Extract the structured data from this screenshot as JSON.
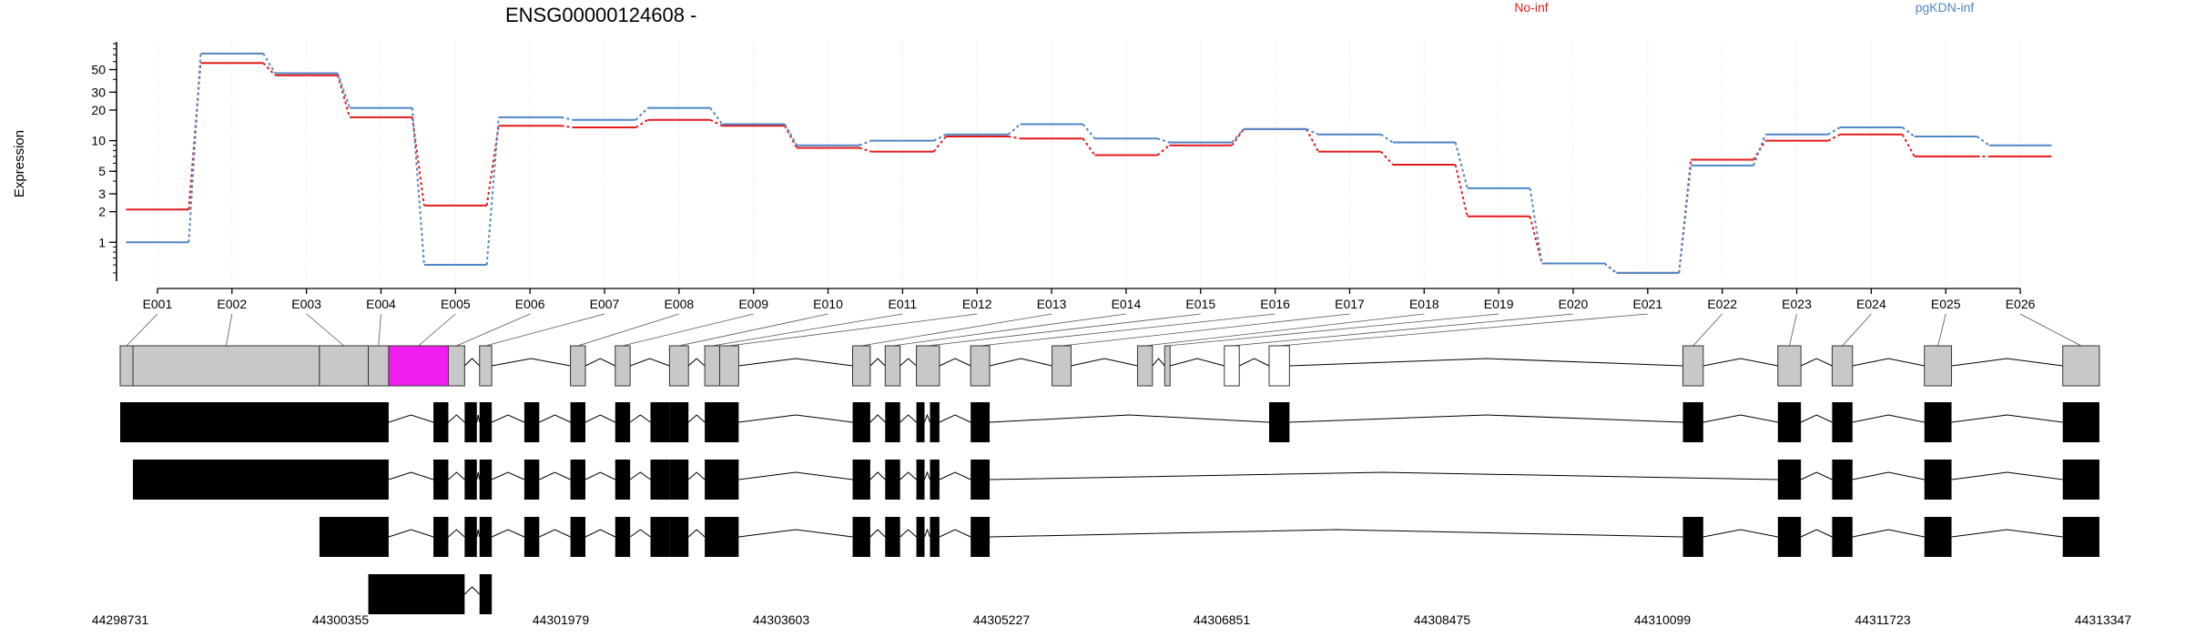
{
  "chart_data": {
    "type": "line",
    "title": "ENSG00000124608 -",
    "ylabel": "Expression",
    "y_scale": "log",
    "yticks": [
      1,
      2,
      3,
      5,
      10,
      20,
      30,
      50
    ],
    "ylim": [
      0.45,
      90
    ],
    "grid": "vertical dotted lines at each exon",
    "legend_placement": "top",
    "categories": [
      "E001",
      "E002",
      "E003",
      "E004",
      "E005",
      "E006",
      "E007",
      "E008",
      "E009",
      "E010",
      "E011",
      "E012",
      "E013",
      "E014",
      "E015",
      "E016",
      "E017",
      "E018",
      "E019",
      "E020",
      "E021",
      "E022",
      "E023",
      "E024",
      "E025",
      "E026"
    ],
    "series": [
      {
        "name": "No-inf",
        "color": "#e31a1c",
        "values": [
          2.1,
          58,
          44,
          17,
          2.3,
          14,
          13.5,
          16,
          14,
          8.5,
          7.8,
          11,
          10.5,
          7.2,
          9,
          13,
          7.8,
          5.8,
          1.8,
          0.62,
          0.5,
          6.5,
          10,
          11.5,
          7,
          7
        ]
      },
      {
        "name": "pgKDN-inf",
        "color": "#4f86c6",
        "values": [
          1.0,
          72,
          46,
          21,
          0.6,
          17,
          16,
          21,
          14.5,
          9,
          10,
          11.5,
          14.5,
          10.5,
          9.6,
          13,
          11.5,
          9.6,
          3.4,
          0.62,
          0.5,
          5.7,
          11.5,
          13.5,
          11,
          9
        ]
      }
    ],
    "gene_model": {
      "coordinate_ticks": [
        "44298731",
        "44300355",
        "44301979",
        "44303603",
        "44305227",
        "44306851",
        "44308475",
        "44310099",
        "44311723",
        "44313347"
      ],
      "coordinate_range": [
        44298731,
        44313347
      ],
      "highlighted_exon": "E005",
      "highlight_color": "#f01ff0",
      "exon_fill": "#c8c8c8",
      "transcript_fill": "#000000",
      "exons": [
        {
          "id": "E001",
          "start": 44298731,
          "end": 44298825,
          "fill": "gray"
        },
        {
          "id": "E002",
          "start": 44298825,
          "end": 44300200,
          "fill": "gray"
        },
        {
          "id": "E003",
          "start": 44300200,
          "end": 44300560,
          "fill": "gray"
        },
        {
          "id": "E004",
          "start": 44300560,
          "end": 44300710,
          "fill": "gray"
        },
        {
          "id": "E005",
          "start": 44300710,
          "end": 44301150,
          "fill": "magenta"
        },
        {
          "id": "E006",
          "start": 44301150,
          "end": 44301270,
          "fill": "gray"
        },
        {
          "id": "E007",
          "start": 44301380,
          "end": 44301470,
          "fill": "gray"
        },
        {
          "id": "E008",
          "start": 44302050,
          "end": 44302160,
          "fill": "gray"
        },
        {
          "id": "E009",
          "start": 44302380,
          "end": 44302490,
          "fill": "gray"
        },
        {
          "id": "E010",
          "start": 44302780,
          "end": 44302920,
          "fill": "gray"
        },
        {
          "id": "E011",
          "start": 44303040,
          "end": 44303150,
          "fill": "gray"
        },
        {
          "id": "E012",
          "start": 44303150,
          "end": 44303290,
          "fill": "gray"
        },
        {
          "id": "E013",
          "start": 44304130,
          "end": 44304260,
          "fill": "gray"
        },
        {
          "id": "E014",
          "start": 44304370,
          "end": 44304480,
          "fill": "gray"
        },
        {
          "id": "E015",
          "start": 44304600,
          "end": 44304770,
          "fill": "gray"
        },
        {
          "id": "E016",
          "start": 44305000,
          "end": 44305140,
          "fill": "gray"
        },
        {
          "id": "E017",
          "start": 44305600,
          "end": 44305740,
          "fill": "gray"
        },
        {
          "id": "E018",
          "start": 44306230,
          "end": 44306340,
          "fill": "gray"
        },
        {
          "id": "E019",
          "start": 44306430,
          "end": 44306470,
          "fill": "gray"
        },
        {
          "id": "E020",
          "start": 44306870,
          "end": 44306980,
          "fill": "white"
        },
        {
          "id": "E021",
          "start": 44307200,
          "end": 44307350,
          "fill": "white"
        },
        {
          "id": "E022",
          "start": 44310250,
          "end": 44310400,
          "fill": "gray"
        },
        {
          "id": "E023",
          "start": 44310950,
          "end": 44311120,
          "fill": "gray"
        },
        {
          "id": "E024",
          "start": 44311350,
          "end": 44311500,
          "fill": "gray"
        },
        {
          "id": "E025",
          "start": 44312030,
          "end": 44312230,
          "fill": "gray"
        },
        {
          "id": "E026",
          "start": 44313050,
          "end": 44313320,
          "fill": "gray"
        }
      ],
      "transcripts": [
        [
          [
            44298731,
            44300710
          ],
          [
            44301040,
            44301150
          ],
          [
            44301270,
            44301360
          ],
          [
            44301380,
            44301470
          ],
          [
            44301710,
            44301820
          ],
          [
            44302050,
            44302160
          ],
          [
            44302380,
            44302490
          ],
          [
            44302640,
            44302780
          ],
          [
            44302780,
            44302920
          ],
          [
            44303040,
            44303150
          ],
          [
            44303150,
            44303290
          ],
          [
            44304130,
            44304260
          ],
          [
            44304370,
            44304480
          ],
          [
            44304600,
            44304660
          ],
          [
            44304700,
            44304770
          ],
          [
            44305000,
            44305140
          ],
          [
            44307200,
            44307350
          ],
          [
            44310250,
            44310400
          ],
          [
            44310950,
            44311120
          ],
          [
            44311350,
            44311500
          ],
          [
            44312030,
            44312230
          ],
          [
            44313050,
            44313320
          ]
        ],
        [
          [
            44298825,
            44300710
          ],
          [
            44301040,
            44301150
          ],
          [
            44301270,
            44301360
          ],
          [
            44301380,
            44301470
          ],
          [
            44301710,
            44301820
          ],
          [
            44302050,
            44302160
          ],
          [
            44302380,
            44302490
          ],
          [
            44302640,
            44302780
          ],
          [
            44302780,
            44302920
          ],
          [
            44303040,
            44303150
          ],
          [
            44303150,
            44303290
          ],
          [
            44304130,
            44304260
          ],
          [
            44304370,
            44304480
          ],
          [
            44304600,
            44304660
          ],
          [
            44304700,
            44304770
          ],
          [
            44305000,
            44305140
          ],
          [
            44310950,
            44311120
          ],
          [
            44311350,
            44311500
          ],
          [
            44312030,
            44312230
          ],
          [
            44313050,
            44313320
          ]
        ],
        [
          [
            44300200,
            44300710
          ],
          [
            44301040,
            44301150
          ],
          [
            44301270,
            44301360
          ],
          [
            44301380,
            44301470
          ],
          [
            44301710,
            44301820
          ],
          [
            44302050,
            44302160
          ],
          [
            44302380,
            44302490
          ],
          [
            44302640,
            44302780
          ],
          [
            44302780,
            44302920
          ],
          [
            44303040,
            44303150
          ],
          [
            44303150,
            44303290
          ],
          [
            44304130,
            44304260
          ],
          [
            44304370,
            44304480
          ],
          [
            44304600,
            44304660
          ],
          [
            44304700,
            44304770
          ],
          [
            44305000,
            44305140
          ],
          [
            44310250,
            44310400
          ],
          [
            44310950,
            44311120
          ],
          [
            44311350,
            44311500
          ],
          [
            44312030,
            44312230
          ],
          [
            44313050,
            44313320
          ]
        ],
        [
          [
            44300560,
            44301270
          ],
          [
            44301380,
            44301470
          ]
        ]
      ]
    }
  }
}
